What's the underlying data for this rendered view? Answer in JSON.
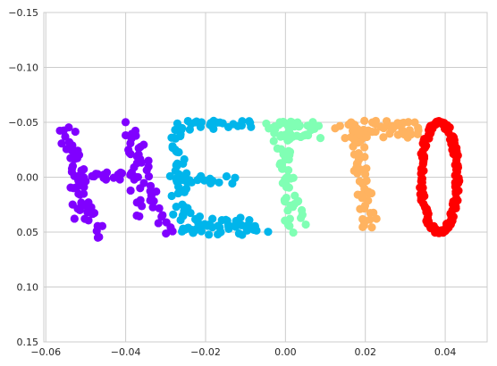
{
  "chart_data": {
    "type": "scatter",
    "title": "",
    "xlabel": "",
    "ylabel": "",
    "xlim": [
      -0.0605,
      0.0505
    ],
    "ylim": [
      -0.15,
      0.15
    ],
    "y_inverted": true,
    "grid": true,
    "style": "seaborn-whitegrid",
    "x_ticks": [
      "−0.06",
      "−0.04",
      "−0.02",
      "0.00",
      "0.02",
      "0.04"
    ],
    "y_ticks": [
      "−0.15",
      "−0.10",
      "−0.05",
      "0.00",
      "0.05",
      "0.10",
      "0.15"
    ],
    "groups": [
      {
        "letter": "H",
        "color": "#8000ff",
        "strokes": [
          {
            "from": [
              -0.0555,
              -0.043
            ],
            "to": [
              -0.0465,
              0.055
            ],
            "n": 34
          },
          {
            "from": [
              -0.0535,
              -0.043
            ],
            "to": [
              -0.0515,
              0.04
            ],
            "n": 18
          },
          {
            "from": [
              -0.0385,
              -0.047
            ],
            "to": [
              -0.0295,
              0.05
            ],
            "n": 34
          },
          {
            "from": [
              -0.04,
              -0.04
            ],
            "to": [
              -0.036,
              0.04
            ],
            "n": 16
          },
          {
            "from": [
              -0.052,
              0.0
            ],
            "to": [
              -0.037,
              0.0
            ],
            "n": 24
          }
        ]
      },
      {
        "letter": "E",
        "color": "#00b5eb",
        "strokes": [
          {
            "from": [
              -0.0275,
              -0.043
            ],
            "to": [
              -0.0245,
              0.05
            ],
            "n": 30
          },
          {
            "from": [
              -0.0275,
              -0.04
            ],
            "to": [
              -0.027,
              0.045
            ],
            "n": 14
          },
          {
            "from": [
              -0.027,
              -0.047
            ],
            "to": [
              -0.0085,
              -0.049
            ],
            "n": 26
          },
          {
            "from": [
              -0.026,
              0.003
            ],
            "to": [
              -0.014,
              0.003
            ],
            "n": 16
          },
          {
            "from": [
              -0.025,
              0.048
            ],
            "to": [
              -0.005,
              0.048
            ],
            "n": 28
          },
          {
            "from": [
              -0.024,
              0.04
            ],
            "to": [
              -0.008,
              0.042
            ],
            "n": 18
          }
        ]
      },
      {
        "letter": "L",
        "color": "#80ffb4",
        "strokes": [
          {
            "from": [
              -0.005,
              -0.047
            ],
            "to": [
              0.007,
              -0.047
            ],
            "n": 22
          },
          {
            "from": [
              -0.002,
              -0.04
            ],
            "to": [
              0.008,
              -0.04
            ],
            "n": 14
          },
          {
            "from": [
              0.0,
              -0.04
            ],
            "to": [
              0.001,
              0.048
            ],
            "n": 32
          },
          {
            "from": [
              -0.002,
              -0.04
            ],
            "to": [
              0.004,
              0.045
            ],
            "n": 18
          }
        ]
      },
      {
        "letter": "T",
        "color": "#ffb360",
        "strokes": [
          {
            "from": [
              0.013,
              -0.047
            ],
            "to": [
              0.034,
              -0.047
            ],
            "n": 30
          },
          {
            "from": [
              0.015,
              -0.04
            ],
            "to": [
              0.033,
              -0.04
            ],
            "n": 20
          },
          {
            "from": [
              0.018,
              -0.04
            ],
            "to": [
              0.021,
              0.05
            ],
            "n": 30
          },
          {
            "from": [
              0.016,
              -0.03
            ],
            "to": [
              0.022,
              0.04
            ],
            "n": 16
          }
        ]
      },
      {
        "letter": "O",
        "color": "#ff0000",
        "ellipse": {
          "center": [
            0.0385,
            0.0
          ],
          "rx": 0.0045,
          "ry": 0.05,
          "n": 150
        }
      }
    ]
  }
}
